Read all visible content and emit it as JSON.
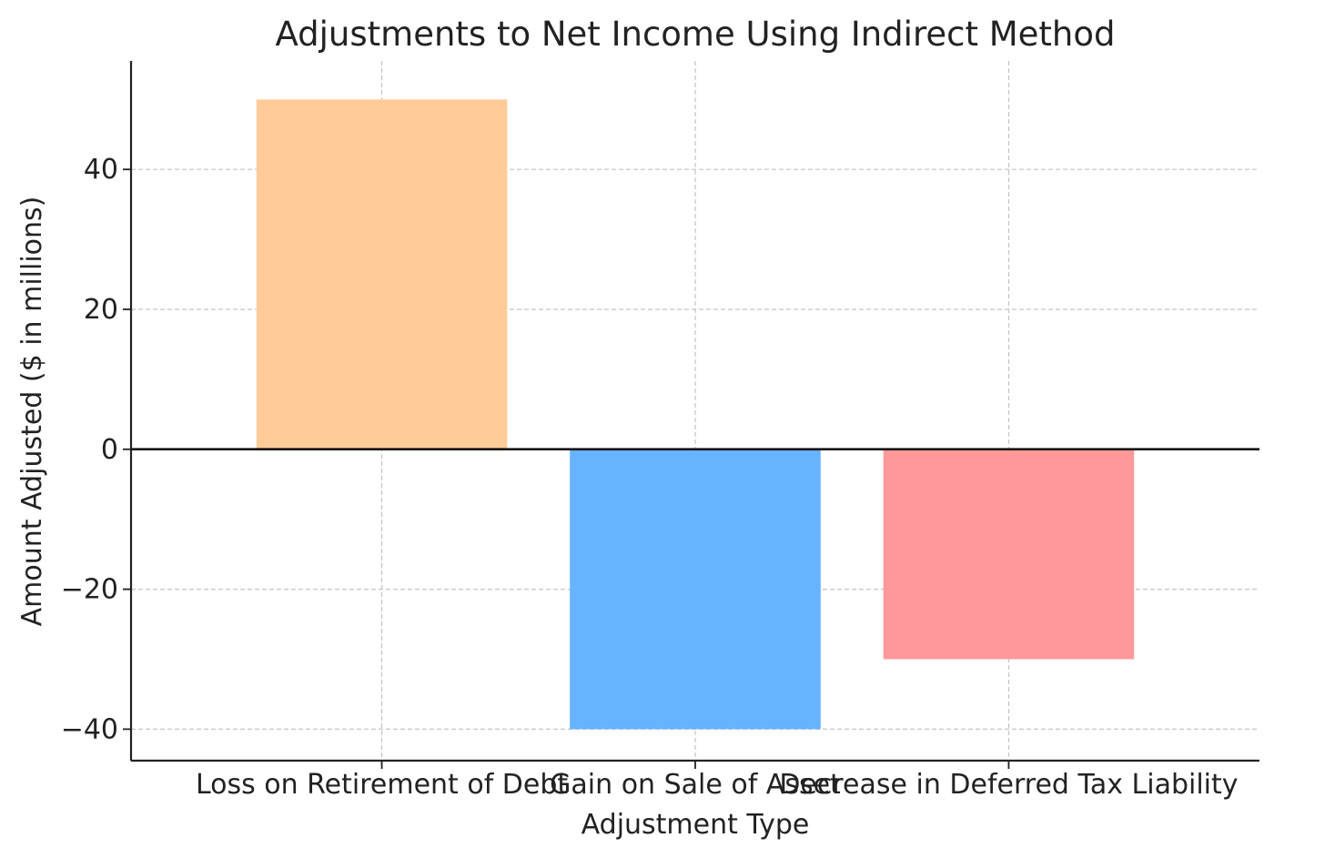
{
  "chart_data": {
    "type": "bar",
    "title": "Adjustments to Net Income Using Indirect Method",
    "xlabel": "Adjustment Type",
    "ylabel": "Amount Adjusted ($ in millions)",
    "categories": [
      "Loss on Retirement of Debt",
      "Gain on Sale of Asset",
      "Decrease in Deferred Tax Liability"
    ],
    "values": [
      50,
      -40,
      -30
    ],
    "colors": [
      "#FFCC99",
      "#66B3FF",
      "#FF9999"
    ],
    "ylim": [
      -44.5,
      55.5
    ],
    "yticks": [
      -40,
      -20,
      0,
      20,
      40
    ],
    "ytick_labels": [
      "−40",
      "−20",
      "0",
      "20",
      "40"
    ],
    "grid": true,
    "zero_line": true
  }
}
